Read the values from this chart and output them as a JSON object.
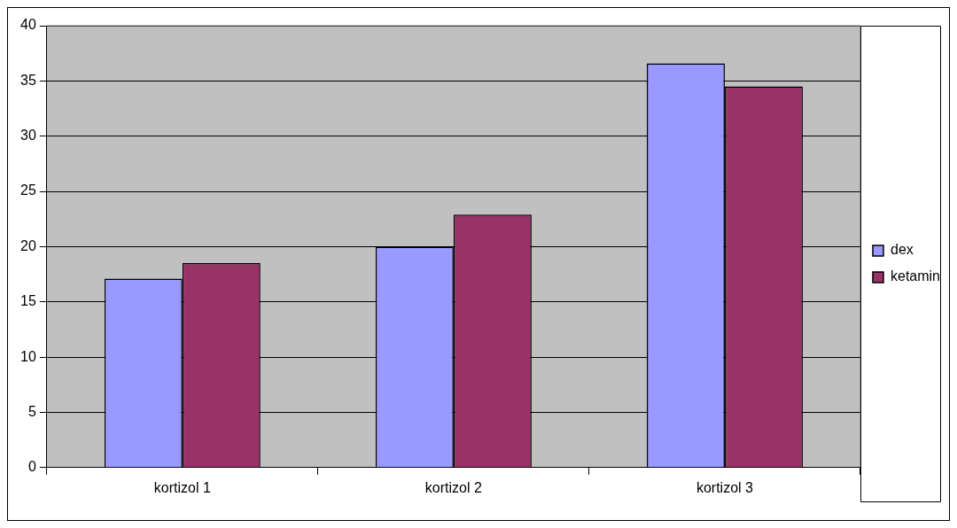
{
  "chart_data": {
    "type": "bar",
    "categories": [
      "kortizol 1",
      "kortizol 2",
      "kortizol 3"
    ],
    "series": [
      {
        "name": "dex",
        "color": "#9999ff",
        "values": [
          17.1,
          20.0,
          36.6
        ]
      },
      {
        "name": "ketamin",
        "color": "#993366",
        "values": [
          18.5,
          22.9,
          34.5
        ]
      }
    ],
    "ylim": [
      0,
      40
    ],
    "yticks": [
      0,
      5,
      10,
      15,
      20,
      25,
      30,
      35,
      40
    ],
    "grid": "y",
    "legend": "right"
  }
}
